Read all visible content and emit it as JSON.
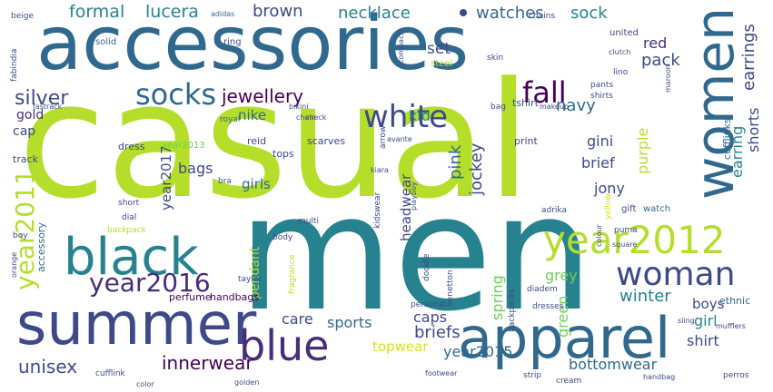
{
  "cloud": {
    "palette": {
      "lime": "#b5de2b",
      "green": "#6ece58",
      "teal": "#26828e",
      "blue": "#3e4989",
      "navy": "#31688e",
      "purple": "#472d7b",
      "darkpurple": "#440154",
      "yellow": "#d8e219"
    },
    "words": {
      "casual": "casual",
      "men": "men",
      "accessories": "accessories",
      "summer": "summer",
      "apparel": "apparel",
      "women": "women",
      "black": "black",
      "blue": "blue",
      "year2012": "year2012",
      "white": "white",
      "socks": "socks",
      "woman": "woman",
      "fall": "fall",
      "year2016": "year2016",
      "year2011": "year2011",
      "jewellery": "jewellery",
      "silver": "silver",
      "unisex": "unisex",
      "innerwear": "innerwear",
      "formal": "formal",
      "lucera": "lucera",
      "brown": "brown",
      "necklace": "necklace",
      "watches": "watches",
      "sock": "sock",
      "earrings": "earrings",
      "earring": "earring",
      "shorts": "shorts",
      "red": "red",
      "pack": "pack",
      "set": "set",
      "navy": "navy",
      "purple": "purple",
      "pink": "pink",
      "jockey": "jockey",
      "kid": "kid",
      "gini": "gini",
      "brief": "brief",
      "briefs": "briefs",
      "jony": "jony",
      "winter": "winter",
      "grey": "grey",
      "spring": "spring",
      "sports": "sports",
      "caps": "caps",
      "care": "care",
      "topwear": "topwear",
      "year2015": "year2015",
      "green": "green",
      "bottomwear": "bottomwear",
      "shirt": "shirt",
      "girl": "girl",
      "boys": "boys",
      "year2017": "year2017",
      "bags": "bags",
      "girls": "girls",
      "headwear": "headwear",
      "pendant": "pendant",
      "nike": "nike",
      "gold": "gold",
      "cap": "cap",
      "tshirt": "tshirt",
      "cufflinks": "cufflinks",
      "watch": "watch",
      "gift": "gift",
      "year2013": "year2013",
      "perfume": "perfume",
      "handbags": "handbags",
      "accessory": "accessory",
      "scarves": "scarves",
      "tops": "tops",
      "reid": "reid",
      "dress": "dress",
      "track": "track",
      "print": "print",
      "ethnic": "ethnic",
      "beige": "beige",
      "adidas": "adidas",
      "chains": "chains",
      "united": "united",
      "ring": "ring",
      "solid": "solid",
      "steel": "steel",
      "fabindia": "fabindia",
      "fastrack": "fastrack",
      "skin": "skin",
      "lino": "lino",
      "bag": "bag",
      "pants": "pants",
      "shirts": "shirts",
      "royal": "royal",
      "multi": "multi",
      "dial": "dial",
      "short": "short",
      "backpack": "backpack",
      "backpacks": "backpacks",
      "benetton": "benetton",
      "doodle": "doodle",
      "personal": "personal",
      "taylor": "taylor",
      "body": "body",
      "boy": "boy",
      "puma": "puma",
      "colour": "colour",
      "yellow": "yellow",
      "arrow": "arrow",
      "kidswear": "kidswear",
      "fragrance": "fragrance",
      "cufflink": "cufflink",
      "diadem": "diadem",
      "dresses": "dresses",
      "strip": "strip",
      "cream": "cream",
      "color": "color",
      "clutch": "clutch",
      "compact": "compact",
      "playboy": "playboy",
      "chain": "chain",
      "check": "check",
      "orange": "orange",
      "bra": "bra",
      "adrika": "adrika",
      "maroon": "maroon",
      "sling": "sling",
      "square": "square",
      "handbag": "handbag",
      "footwear": "footwear",
      "golden": "golden",
      "mufflers": "mufflers",
      "perros": "perros",
      "kiara": "kiara",
      "bikini": "bikini",
      "avante": "avante",
      "makeup": "makeup"
    }
  }
}
